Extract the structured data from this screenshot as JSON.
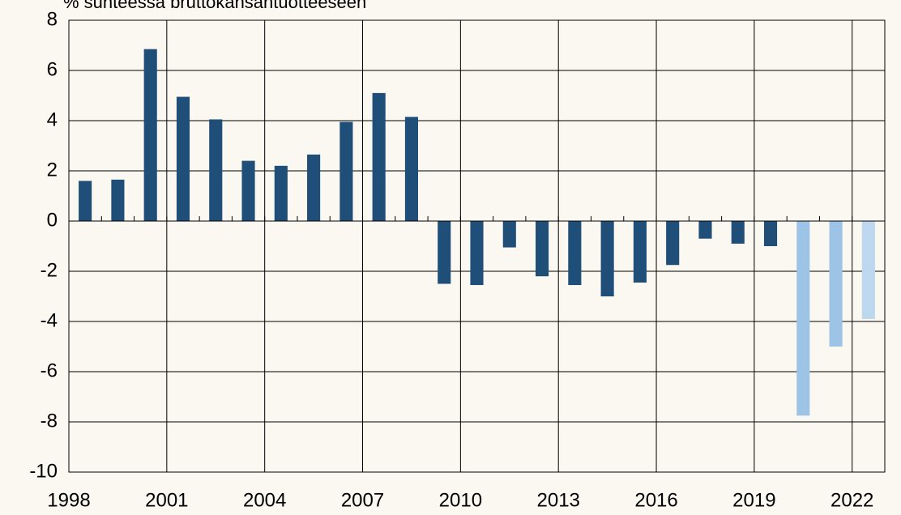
{
  "chart_data": {
    "type": "bar",
    "title": "% suhteessa bruttokansantuotteeseen",
    "categories": [
      "1998",
      null,
      null,
      "2001",
      null,
      null,
      "2004",
      null,
      null,
      "2007",
      null,
      null,
      "2010",
      null,
      null,
      "2013",
      null,
      null,
      "2016",
      null,
      null,
      "2019",
      null,
      null,
      "2022"
    ],
    "values": [
      1.6,
      1.65,
      6.85,
      4.95,
      4.05,
      2.4,
      2.2,
      2.65,
      3.95,
      5.1,
      4.15,
      -2.5,
      -2.55,
      -1.05,
      -2.2,
      -2.55,
      -3.0,
      -2.45,
      -1.75,
      -0.7,
      -0.9,
      -1.0,
      -7.75,
      -5.0,
      -3.9
    ],
    "colors": [
      "#1f4e79",
      "#1f4e79",
      "#1f4e79",
      "#1f4e79",
      "#1f4e79",
      "#1f4e79",
      "#1f4e79",
      "#1f4e79",
      "#1f4e79",
      "#1f4e79",
      "#1f4e79",
      "#1f4e79",
      "#1f4e79",
      "#1f4e79",
      "#1f4e79",
      "#1f4e79",
      "#1f4e79",
      "#1f4e79",
      "#1f4e79",
      "#1f4e79",
      "#1f4e79",
      "#1f4e79",
      "#9dc3e6",
      "#9dc3e6",
      "#bdd7ee"
    ],
    "ylim": [
      -10,
      8
    ],
    "yticks": [
      -10,
      -8,
      -6,
      -4,
      -2,
      0,
      2,
      4,
      6,
      8
    ],
    "grid": true
  }
}
